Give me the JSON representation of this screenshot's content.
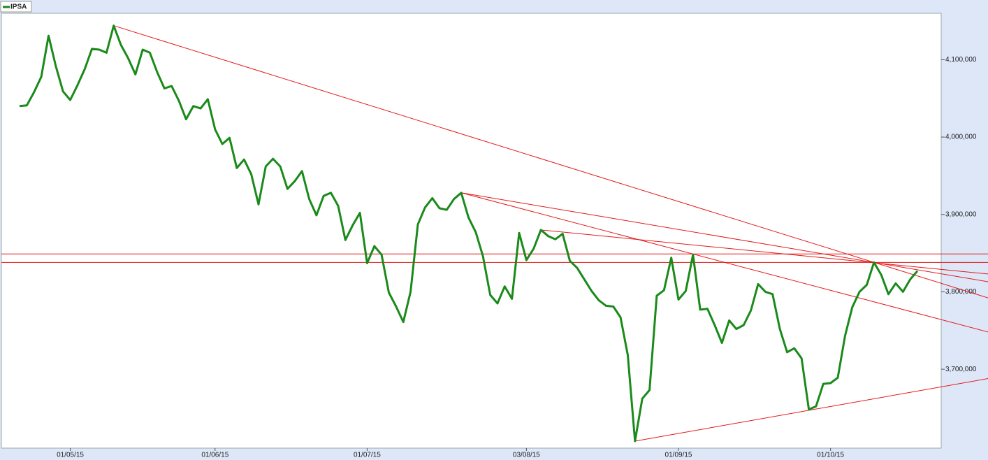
{
  "chart_data": {
    "type": "line",
    "categories": [
      null,
      null,
      null,
      null,
      null,
      null,
      null,
      "01/05/15",
      null,
      null,
      null,
      null,
      null,
      null,
      null,
      null,
      null,
      null,
      null,
      null,
      null,
      null,
      null,
      null,
      null,
      null,
      null,
      "01/06/15",
      null,
      null,
      null,
      null,
      null,
      null,
      null,
      null,
      null,
      null,
      null,
      null,
      null,
      null,
      null,
      null,
      null,
      null,
      null,
      null,
      "01/07/15",
      null,
      null,
      null,
      null,
      null,
      null,
      null,
      null,
      null,
      null,
      null,
      null,
      null,
      null,
      null,
      null,
      null,
      null,
      null,
      null,
      null,
      "03/08/15",
      null,
      null,
      null,
      null,
      null,
      null,
      null,
      null,
      null,
      null,
      null,
      null,
      null,
      null,
      null,
      null,
      null,
      null,
      null,
      null,
      "01/09/15",
      null,
      null,
      null,
      null,
      null,
      null,
      null,
      null,
      null,
      null,
      null,
      null,
      null,
      null,
      null,
      null,
      null,
      null,
      null,
      null,
      "01/10/15",
      null,
      null,
      null,
      null,
      null,
      null,
      null,
      null,
      null,
      null,
      null,
      null
    ],
    "series": [
      {
        "name": "IPSA",
        "color": "#1a8a1a",
        "values": [
          4040000,
          4041000,
          4058000,
          4078000,
          4131000,
          4092000,
          4059000,
          4048000,
          4067000,
          4088000,
          4114000,
          4113000,
          4109000,
          4144000,
          4119000,
          4102000,
          4081000,
          4113000,
          4109000,
          4084000,
          4063000,
          4066000,
          4047000,
          4023000,
          4040000,
          4037000,
          4049000,
          4010000,
          3991000,
          3999000,
          3960000,
          3971000,
          3952000,
          3913000,
          3962000,
          3972000,
          3962000,
          3933000,
          3943000,
          3956000,
          3920000,
          3899000,
          3924000,
          3928000,
          3911000,
          3867000,
          3886000,
          3902000,
          3837000,
          3859000,
          3848000,
          3799000,
          3781000,
          3761000,
          3800000,
          3887000,
          3909000,
          3921000,
          3908000,
          3906000,
          3920000,
          3928000,
          3896000,
          3877000,
          3846000,
          3796000,
          3785000,
          3807000,
          3791000,
          3876000,
          3841000,
          3856000,
          3880000,
          3872000,
          3868000,
          3875000,
          3840000,
          3831000,
          3816000,
          3801000,
          3789000,
          3782000,
          3781000,
          3767000,
          3718000,
          3607000,
          3662000,
          3673000,
          3795000,
          3802000,
          3844000,
          3790000,
          3801000,
          3848000,
          3777000,
          3778000,
          3757000,
          3734000,
          3763000,
          3752000,
          3757000,
          3776000,
          3810000,
          3800000,
          3797000,
          3752000,
          3722000,
          3727000,
          3714000,
          3648000,
          3652000,
          3681000,
          3682000,
          3689000,
          3743000,
          3780000,
          3800000,
          3809000,
          3838000,
          3822000,
          3797000,
          3811000,
          3800000,
          3816000,
          3827000
        ]
      }
    ],
    "trend_lines": [
      {
        "color": "#e41a1a",
        "x": [
          13,
          133.8
        ],
        "values": [
          4144000,
          3792000
        ]
      },
      {
        "color": "#e41a1a",
        "x": [
          61,
          133.8
        ],
        "values": [
          3928000,
          3813000
        ]
      },
      {
        "color": "#e41a1a",
        "x": [
          61,
          133.8
        ],
        "values": [
          3928000,
          3748000
        ]
      },
      {
        "color": "#e41a1a",
        "x": [
          72,
          133.8
        ],
        "values": [
          3880000,
          3823000
        ]
      },
      {
        "color": "#e41a1a",
        "x": [
          85,
          133.8
        ],
        "values": [
          3607000,
          3688000
        ]
      }
    ],
    "hlines": [
      {
        "color": "#e41a1a",
        "value": 3849000
      },
      {
        "color": "#e41a1a",
        "value": 3838000
      }
    ],
    "ylim": [
      3598000,
      4160000
    ],
    "yticks": [
      {
        "value": 3700000,
        "label": "3,700,000"
      },
      {
        "value": 3800000,
        "label": "3,800,000"
      },
      {
        "value": 3900000,
        "label": "3,900,000"
      },
      {
        "value": 4000000,
        "label": "4,000,000"
      },
      {
        "value": 4100000,
        "label": "4,100,000"
      }
    ],
    "grid": false,
    "legend": "top-left"
  }
}
